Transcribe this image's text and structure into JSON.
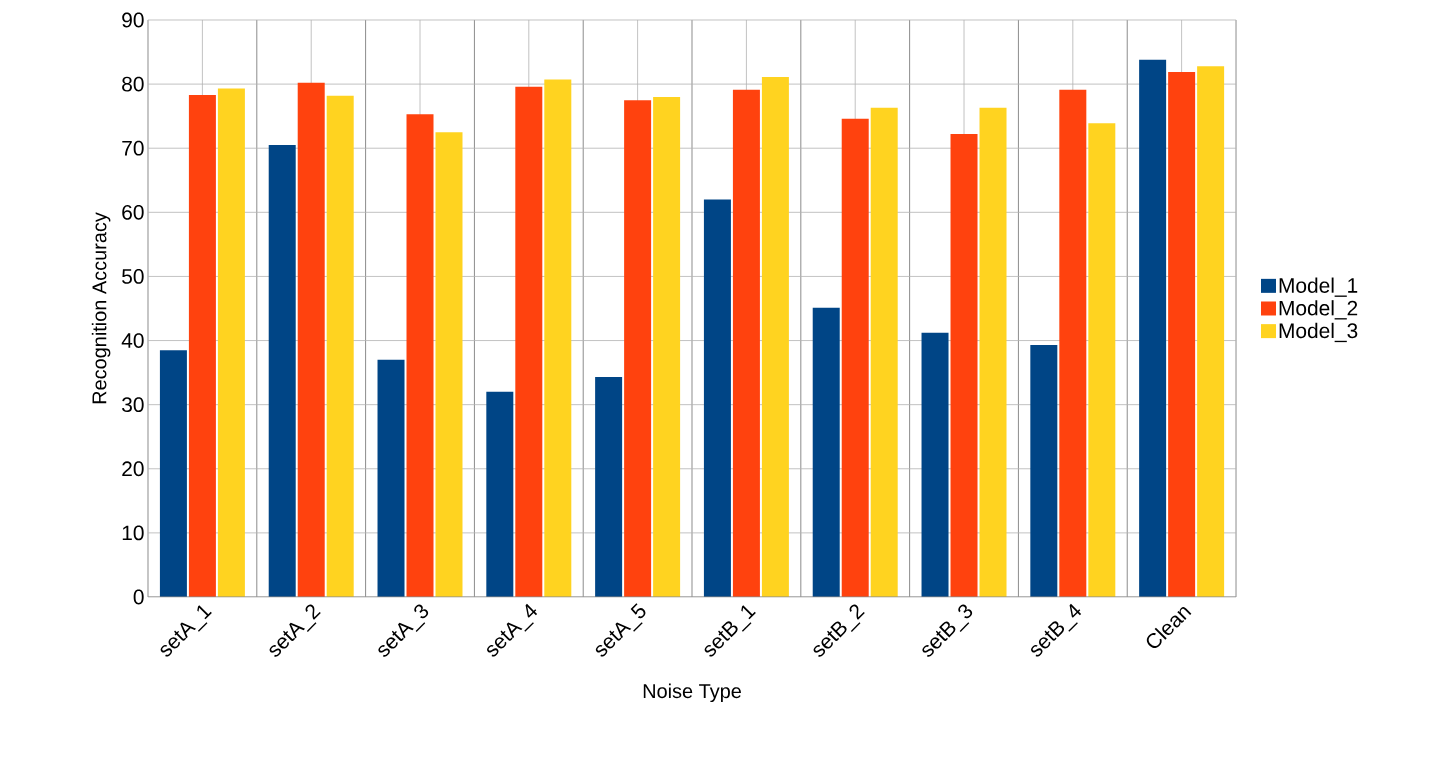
{
  "chart_data": {
    "type": "bar",
    "xlabel": "Noise Type",
    "ylabel": "Recognition Accuracy",
    "categories": [
      "setA_1",
      "setA_2",
      "setA_3",
      "setA_4",
      "setA_5",
      "setB_1",
      "setB_2",
      "setB_3",
      "setB_4",
      "Clean"
    ],
    "series": [
      {
        "name": "Model_1",
        "color": "#004586",
        "values": [
          38.5,
          70.5,
          37,
          32,
          34.3,
          62,
          45.1,
          41.2,
          39.3,
          83.8
        ]
      },
      {
        "name": "Model_2",
        "color": "#ff420e",
        "values": [
          78.3,
          80.2,
          75.3,
          79.6,
          77.5,
          79.1,
          74.6,
          72.2,
          79.1,
          81.9
        ]
      },
      {
        "name": "Model_3",
        "color": "#ffd320",
        "values": [
          79.3,
          78.2,
          72.5,
          80.7,
          78,
          81.1,
          76.3,
          76.3,
          73.9,
          82.8
        ]
      }
    ],
    "ylim": [
      0,
      90
    ],
    "yticks": [
      0,
      10,
      20,
      30,
      40,
      50,
      60,
      70,
      80,
      90
    ],
    "grid": true,
    "legend": "right"
  }
}
